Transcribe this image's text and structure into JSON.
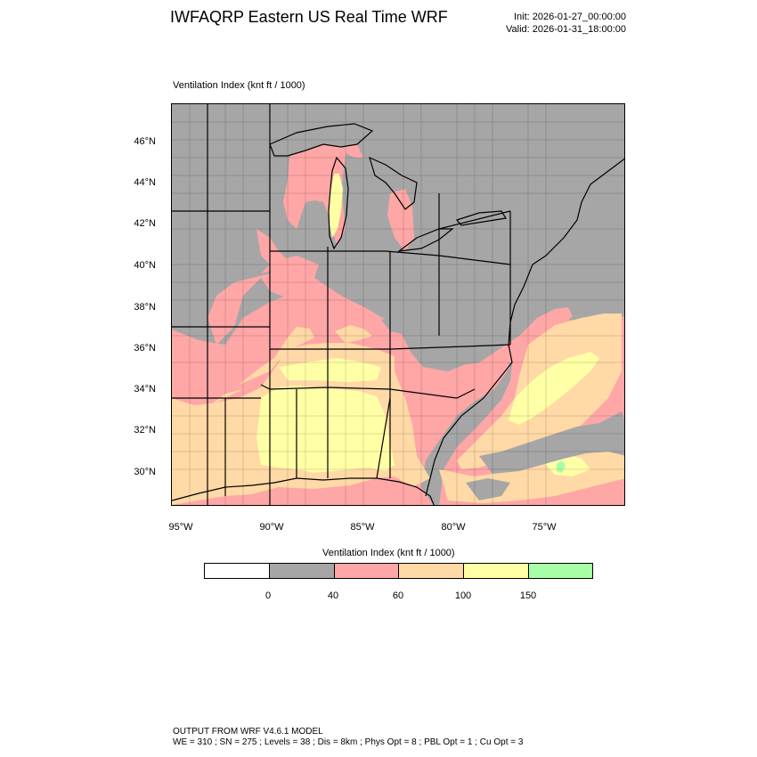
{
  "header": {
    "title": "IWFAQRP Eastern US Real Time WRF",
    "init": "Init: 2026-01-27_00:00:00",
    "valid": "Valid: 2026-01-31_18:00:00"
  },
  "map": {
    "field_label": "Ventilation Index   (knt ft / 1000)",
    "lat_labels": [
      "46°N",
      "44°N",
      "42°N",
      "40°N",
      "38°N",
      "36°N",
      "34°N",
      "32°N",
      "30°N"
    ],
    "lon_labels": [
      "95°W",
      "90°W",
      "85°W",
      "80°W",
      "75°W"
    ]
  },
  "colorbar": {
    "title": "Ventilation Index  (knt ft / 1000)",
    "colors": [
      "#ffffff",
      "#a6a6a6",
      "#ffa6a6",
      "#ffd9a6",
      "#ffffa6",
      "#a6ffa6"
    ],
    "ticks": [
      "0",
      "40",
      "60",
      "100",
      "150"
    ]
  },
  "footer": {
    "line1": "OUTPUT FROM WRF V4.6.1 MODEL",
    "line2": "WE = 310 ; SN = 275 ; Levels = 38 ; Dis = 8km ; Phys Opt = 8 ; PBL Opt = 1 ; Cu Opt = 3"
  }
}
